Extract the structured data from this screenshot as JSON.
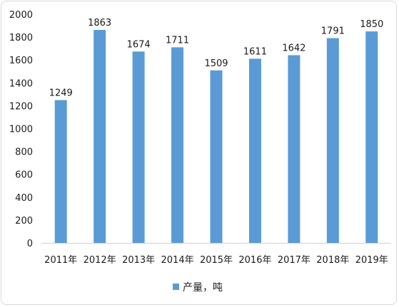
{
  "chart_data": {
    "type": "bar",
    "categories": [
      "2011年",
      "2012年",
      "2013年",
      "2014年",
      "2015年",
      "2016年",
      "2017年",
      "2018年",
      "2019年"
    ],
    "series": [
      {
        "name": "产量，吨",
        "values": [
          1249,
          1863,
          1674,
          1711,
          1509,
          1611,
          1642,
          1791,
          1850
        ],
        "color": "#5b9bd5"
      }
    ],
    "title": "",
    "xlabel": "",
    "ylabel": "",
    "ylim": [
      0,
      2000
    ],
    "yticks": [
      0,
      200,
      400,
      600,
      800,
      1000,
      1200,
      1400,
      1600,
      1800,
      2000
    ],
    "grid": false,
    "legend_position": "bottom"
  }
}
